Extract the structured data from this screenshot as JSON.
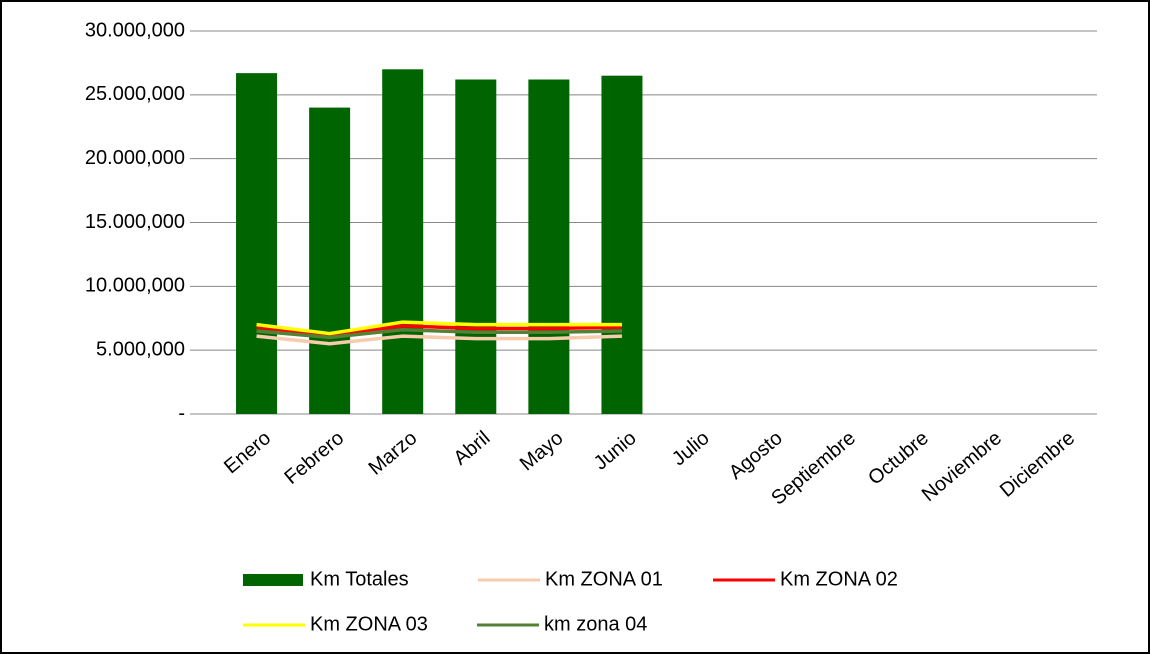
{
  "chart_data": {
    "type": "bar",
    "categories": [
      "Enero",
      "Febrero",
      "Marzo",
      "Abril",
      "Mayo",
      "Junio",
      "Julio",
      "Agosto",
      "Septiembre",
      "Octubre",
      "Noviembre",
      "Diciembre"
    ],
    "series": [
      {
        "name": "Km Totales",
        "type": "bar",
        "color": "#006400",
        "values": [
          26700000,
          24000000,
          27000000,
          26200000,
          26200000,
          26500000,
          null,
          null,
          null,
          null,
          null,
          null
        ]
      },
      {
        "name": "Km ZONA 01",
        "type": "line",
        "color": "#f8cbad",
        "values": [
          6100000,
          5500000,
          6100000,
          5900000,
          5900000,
          6100000,
          null,
          null,
          null,
          null,
          null,
          null
        ]
      },
      {
        "name": "Km ZONA 02",
        "type": "line",
        "color": "#ff0000",
        "values": [
          6800000,
          6200000,
          6900000,
          6700000,
          6700000,
          6800000,
          null,
          null,
          null,
          null,
          null,
          null
        ]
      },
      {
        "name": "Km ZONA 03",
        "type": "line",
        "color": "#ffff00",
        "values": [
          7000000,
          6300000,
          7200000,
          7000000,
          7000000,
          7000000,
          null,
          null,
          null,
          null,
          null,
          null
        ]
      },
      {
        "name": "km zona 04",
        "type": "line",
        "color": "#548235",
        "values": [
          6500000,
          6000000,
          6600000,
          6400000,
          6400000,
          6500000,
          null,
          null,
          null,
          null,
          null,
          null
        ]
      }
    ],
    "ylim": [
      0,
      30000000
    ],
    "yticks": [
      {
        "value": 0,
        "label": "-"
      },
      {
        "value": 5000000,
        "label": "5.000,000"
      },
      {
        "value": 10000000,
        "label": "10.000,000"
      },
      {
        "value": 15000000,
        "label": "15.000,000"
      },
      {
        "value": 20000000,
        "label": "20.000,000"
      },
      {
        "value": 25000000,
        "label": "25.000,000"
      },
      {
        "value": 30000000,
        "label": "30.000,000"
      }
    ],
    "grid": true,
    "legend": "bottom"
  }
}
